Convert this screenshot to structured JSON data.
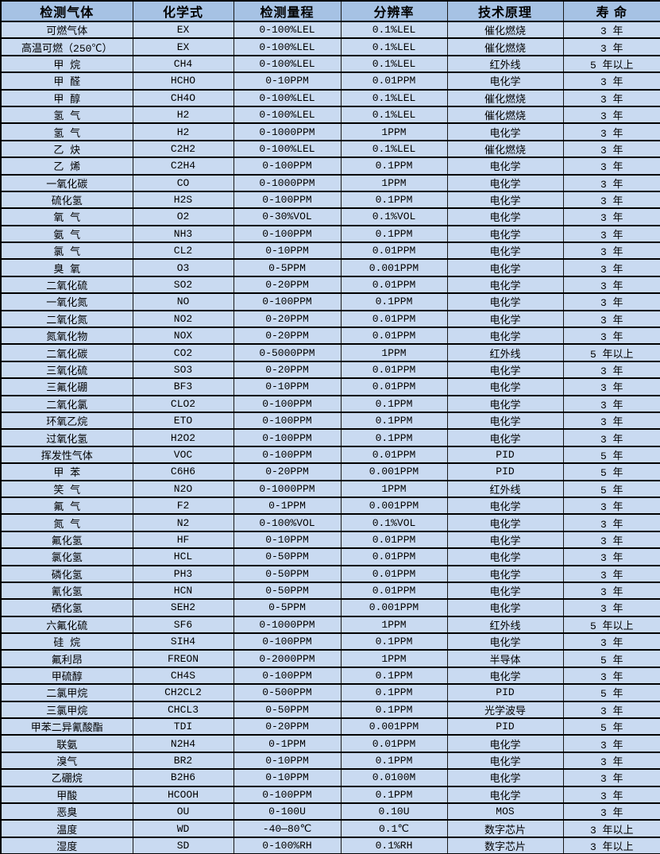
{
  "colors": {
    "header_bg": "#a6c2e4",
    "row_bg": "#c9daf1",
    "border": "#000000",
    "text": "#000000"
  },
  "table": {
    "columns": [
      "检测气体",
      "化学式",
      "检测量程",
      "分辨率",
      "技术原理",
      "寿 命"
    ],
    "rows": [
      [
        "可燃气体",
        "EX",
        "0-100%LEL",
        "0.1%LEL",
        "催化燃烧",
        "3 年"
      ],
      [
        "高温可燃（250℃）",
        "EX",
        "0-100%LEL",
        "0.1%LEL",
        "催化燃烧",
        "3 年"
      ],
      [
        "甲 烷",
        "CH4",
        "0-100%LEL",
        "0.1%LEL",
        "红外线",
        "5 年以上"
      ],
      [
        "甲 醛",
        "HCHO",
        "0-10PPM",
        "0.01PPM",
        "电化学",
        "3 年"
      ],
      [
        "甲 醇",
        "CH4O",
        "0-100%LEL",
        "0.1%LEL",
        "催化燃烧",
        "3 年"
      ],
      [
        "氢 气",
        "H2",
        "0-100%LEL",
        "0.1%LEL",
        "催化燃烧",
        "3 年"
      ],
      [
        "氢 气",
        "H2",
        "0-1000PPM",
        "1PPM",
        "电化学",
        "3 年"
      ],
      [
        "乙 炔",
        "C2H2",
        "0-100%LEL",
        "0.1%LEL",
        "催化燃烧",
        "3 年"
      ],
      [
        "乙 烯",
        "C2H4",
        "0-100PPM",
        "0.1PPM",
        "电化学",
        "3 年"
      ],
      [
        "一氧化碳",
        "CO",
        "0-1000PPM",
        "1PPM",
        "电化学",
        "3 年"
      ],
      [
        "硫化氢",
        "H2S",
        "0-100PPM",
        "0.1PPM",
        "电化学",
        "3 年"
      ],
      [
        "氧 气",
        "O2",
        "0-30%VOL",
        "0.1%VOL",
        "电化学",
        "3 年"
      ],
      [
        "氨 气",
        "NH3",
        "0-100PPM",
        "0.1PPM",
        "电化学",
        "3 年"
      ],
      [
        "氯 气",
        "CL2",
        "0-10PPM",
        "0.01PPM",
        "电化学",
        "3 年"
      ],
      [
        "臭 氧",
        "O3",
        "0-5PPM",
        "0.001PPM",
        "电化学",
        "3 年"
      ],
      [
        "二氧化硫",
        "SO2",
        "0-20PPM",
        "0.01PPM",
        "电化学",
        "3 年"
      ],
      [
        "一氧化氮",
        "NO",
        "0-100PPM",
        "0.1PPM",
        "电化学",
        "3 年"
      ],
      [
        "二氧化氮",
        "NO2",
        "0-20PPM",
        "0.01PPM",
        "电化学",
        "3 年"
      ],
      [
        "氮氧化物",
        "NOX",
        "0-20PPM",
        "0.01PPM",
        "电化学",
        "3 年"
      ],
      [
        "二氧化碳",
        "CO2",
        "0-5000PPM",
        "1PPM",
        "红外线",
        "5 年以上"
      ],
      [
        "三氧化硫",
        "SO3",
        "0-20PPM",
        "0.01PPM",
        "电化学",
        "3 年"
      ],
      [
        "三氟化硼",
        "BF3",
        "0-10PPM",
        "0.01PPM",
        "电化学",
        "3 年"
      ],
      [
        "二氧化氯",
        "CLO2",
        "0-100PPM",
        "0.1PPM",
        "电化学",
        "3 年"
      ],
      [
        "环氧乙烷",
        "ETO",
        "0-100PPM",
        "0.1PPM",
        "电化学",
        "3 年"
      ],
      [
        "过氧化氢",
        "H2O2",
        "0-100PPM",
        "0.1PPM",
        "电化学",
        "3 年"
      ],
      [
        "挥发性气体",
        "VOC",
        "0-100PPM",
        "0.01PPM",
        "PID",
        "5 年"
      ],
      [
        "甲 苯",
        "C6H6",
        "0-20PPM",
        "0.001PPM",
        "PID",
        "5 年"
      ],
      [
        "笑 气",
        "N2O",
        "0-1000PPM",
        "1PPM",
        "红外线",
        "5 年"
      ],
      [
        "氟 气",
        "F2",
        "0-1PPM",
        "0.001PPM",
        "电化学",
        "3 年"
      ],
      [
        "氮 气",
        "N2",
        "0-100%VOL",
        "0.1%VOL",
        "电化学",
        "3 年"
      ],
      [
        "氟化氢",
        "HF",
        "0-10PPM",
        "0.01PPM",
        "电化学",
        "3 年"
      ],
      [
        "氯化氢",
        "HCL",
        "0-50PPM",
        "0.01PPM",
        "电化学",
        "3 年"
      ],
      [
        "磷化氢",
        "PH3",
        "0-50PPM",
        "0.01PPM",
        "电化学",
        "3 年"
      ],
      [
        "氰化氢",
        "HCN",
        "0-50PPM",
        "0.01PPM",
        "电化学",
        "3 年"
      ],
      [
        "硒化氢",
        "SEH2",
        "0-5PPM",
        "0.001PPM",
        "电化学",
        "3 年"
      ],
      [
        "六氟化硫",
        "SF6",
        "0-1000PPM",
        "1PPM",
        "红外线",
        "5 年以上"
      ],
      [
        "硅 烷",
        "SIH4",
        "0-100PPM",
        "0.1PPM",
        "电化学",
        "3 年"
      ],
      [
        "氟利昂",
        "FREON",
        "0-2000PPM",
        "1PPM",
        "半导体",
        "5 年"
      ],
      [
        "甲硫醇",
        "CH4S",
        "0-100PPM",
        "0.1PPM",
        "电化学",
        "3 年"
      ],
      [
        "二氯甲烷",
        "CH2CL2",
        "0-500PPM",
        "0.1PPM",
        "PID",
        "5 年"
      ],
      [
        "三氯甲烷",
        "CHCL3",
        "0-50PPM",
        "0.1PPM",
        "光学波导",
        "3 年"
      ],
      [
        "甲苯二异氰酸酯",
        "TDI",
        "0-20PPM",
        "0.001PPM",
        "PID",
        "5 年"
      ],
      [
        "联氨",
        "N2H4",
        "0-1PPM",
        "0.01PPM",
        "电化学",
        "3 年"
      ],
      [
        "溴气",
        "BR2",
        "0-10PPM",
        "0.1PPM",
        "电化学",
        "3 年"
      ],
      [
        "乙硼烷",
        "B2H6",
        "0-10PPM",
        "0.0100M",
        "电化学",
        "3 年"
      ],
      [
        "甲酸",
        "HCOOH",
        "0-100PPM",
        "0.1PPM",
        "电化学",
        "3 年"
      ],
      [
        "恶臭",
        "OU",
        "0-100U",
        "0.10U",
        "MOS",
        "3 年"
      ],
      [
        "温度",
        "WD",
        "-40—80℃",
        "0.1℃",
        "数字芯片",
        "3 年以上"
      ],
      [
        "湿度",
        "SD",
        "0-100%RH",
        "0.1%RH",
        "数字芯片",
        "3 年以上"
      ]
    ]
  }
}
